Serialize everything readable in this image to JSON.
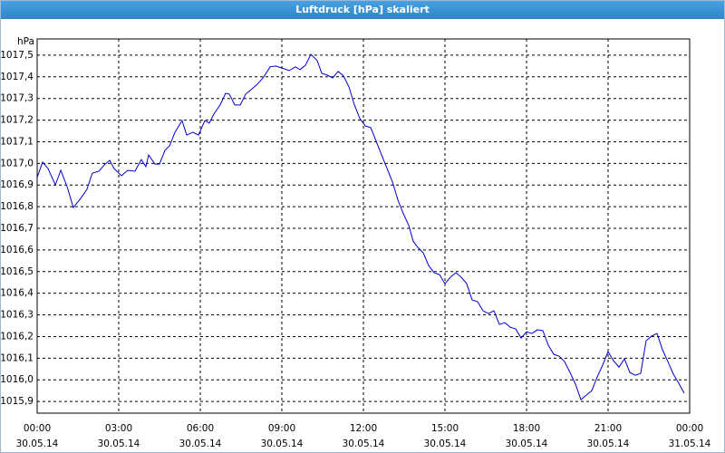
{
  "chart_data": {
    "type": "line",
    "title": "Luftdruck [hPa] skaliert",
    "y_unit": "hPa",
    "grid": true,
    "xlim": [
      0,
      24
    ],
    "ylim": [
      1015.846,
      1017.575
    ],
    "xticks": [
      {
        "value": 0,
        "label": "00:00\n30.05.14"
      },
      {
        "value": 3,
        "label": "03:00\n30.05.14"
      },
      {
        "value": 6,
        "label": "06:00\n30.05.14"
      },
      {
        "value": 9,
        "label": "09:00\n30.05.14"
      },
      {
        "value": 12,
        "label": "12:00\n30.05.14"
      },
      {
        "value": 15,
        "label": "15:00\n30.05.14"
      },
      {
        "value": 18,
        "label": "18:00\n30.05.14"
      },
      {
        "value": 21,
        "label": "21:00\n30.05.14"
      },
      {
        "value": 24,
        "label": "00:00\n31.05.14"
      }
    ],
    "yticks": [
      {
        "value": 1015.9,
        "label": "1015,9"
      },
      {
        "value": 1016.0,
        "label": "1016,0"
      },
      {
        "value": 1016.1,
        "label": "1016,1"
      },
      {
        "value": 1016.2,
        "label": "1016,2"
      },
      {
        "value": 1016.3,
        "label": "1016,3"
      },
      {
        "value": 1016.4,
        "label": "1016,4"
      },
      {
        "value": 1016.5,
        "label": "1016,5"
      },
      {
        "value": 1016.6,
        "label": "1016,6"
      },
      {
        "value": 1016.7,
        "label": "1016,7"
      },
      {
        "value": 1016.8,
        "label": "1016,8"
      },
      {
        "value": 1016.9,
        "label": "1016,9"
      },
      {
        "value": 1017.0,
        "label": "1017,0"
      },
      {
        "value": 1017.1,
        "label": "1017,1"
      },
      {
        "value": 1017.2,
        "label": "1017,2"
      },
      {
        "value": 1017.3,
        "label": "1017,3"
      },
      {
        "value": 1017.4,
        "label": "1017,4"
      },
      {
        "value": 1017.5,
        "label": "1017,5"
      }
    ],
    "x": [
      0,
      0.2,
      0.4,
      0.67,
      0.87,
      1.1,
      1.33,
      1.6,
      1.83,
      2.03,
      2.27,
      2.5,
      2.67,
      2.83,
      3.1,
      3.33,
      3.6,
      3.83,
      4,
      4.1,
      4.33,
      4.5,
      4.7,
      4.87,
      5.07,
      5.33,
      5.5,
      5.73,
      5.93,
      6.17,
      6.33,
      6.5,
      6.73,
      6.93,
      7.07,
      7.27,
      7.47,
      7.67,
      7.87,
      8.1,
      8.33,
      8.57,
      8.77,
      9,
      9.27,
      9.5,
      9.67,
      9.87,
      10.07,
      10.3,
      10.47,
      10.67,
      10.87,
      11.07,
      11.27,
      11.47,
      11.67,
      11.87,
      12.07,
      12.27,
      12.47,
      12.67,
      12.87,
      13.07,
      13.27,
      13.47,
      13.67,
      13.83,
      14,
      14.2,
      14.4,
      14.6,
      14.8,
      15,
      15.2,
      15.4,
      15.6,
      15.8,
      16,
      16.2,
      16.4,
      16.6,
      16.8,
      17,
      17.2,
      17.4,
      17.6,
      17.8,
      18,
      18.2,
      18.4,
      18.6,
      18.8,
      19,
      19.2,
      19.4,
      19.6,
      19.8,
      20,
      20.2,
      20.4,
      20.6,
      20.8,
      21,
      21.2,
      21.4,
      21.6,
      21.8,
      22,
      22.2,
      22.4,
      22.6,
      22.8,
      23,
      23.2,
      23.4,
      23.6,
      23.8
    ],
    "series": [
      {
        "name": "Luftdruck",
        "color": "#0000cc",
        "values": [
          1016.935,
          1017.006,
          1016.976,
          1016.901,
          1016.968,
          1016.893,
          1016.796,
          1016.838,
          1016.88,
          1016.955,
          1016.964,
          1016.997,
          1017.014,
          1016.976,
          1016.943,
          1016.968,
          1016.964,
          1017.018,
          1016.985,
          1017.039,
          1016.997,
          1016.997,
          1017.06,
          1017.081,
          1017.144,
          1017.198,
          1017.131,
          1017.144,
          1017.131,
          1017.198,
          1017.186,
          1017.228,
          1017.27,
          1017.324,
          1017.32,
          1017.27,
          1017.27,
          1017.32,
          1017.341,
          1017.366,
          1017.399,
          1017.446,
          1017.45,
          1017.441,
          1017.429,
          1017.446,
          1017.433,
          1017.454,
          1017.504,
          1017.475,
          1017.416,
          1017.408,
          1017.395,
          1017.425,
          1017.404,
          1017.353,
          1017.27,
          1017.207,
          1017.173,
          1017.165,
          1017.102,
          1017.039,
          1016.976,
          1016.914,
          1016.83,
          1016.767,
          1016.713,
          1016.641,
          1016.612,
          1016.587,
          1016.528,
          1016.495,
          1016.486,
          1016.444,
          1016.474,
          1016.495,
          1016.474,
          1016.444,
          1016.369,
          1016.361,
          1016.319,
          1016.306,
          1016.319,
          1016.256,
          1016.264,
          1016.243,
          1016.235,
          1016.193,
          1016.222,
          1016.214,
          1016.231,
          1016.227,
          1016.16,
          1016.118,
          1016.109,
          1016.084,
          1016.034,
          1015.98,
          1015.908,
          1015.929,
          1015.95,
          1016.013,
          1016.068,
          1016.13,
          1016.088,
          1016.059,
          1016.097,
          1016.034,
          1016.021,
          1016.03,
          1016.181,
          1016.202,
          1016.214,
          1016.139,
          1016.084,
          1016.026,
          1015.984,
          1015.938
        ]
      }
    ]
  }
}
